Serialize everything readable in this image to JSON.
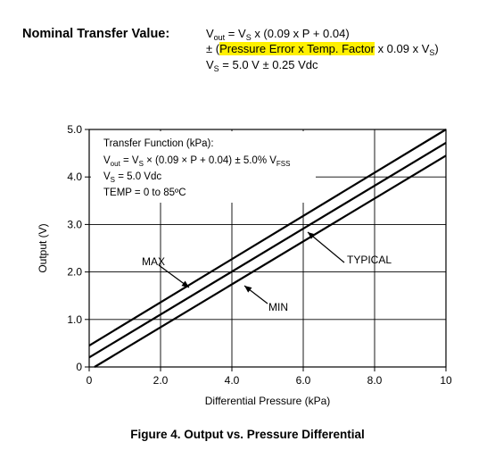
{
  "header": {
    "label": "Nominal Transfer Value:",
    "eq1": {
      "a": "V",
      "a_sub": "out",
      "b": " = V",
      "b_sub": "S",
      "c": " x (0.09 x P + 0.04)"
    },
    "eq2": {
      "pre": "± (",
      "highlight": "Pressure Error x Temp. Factor",
      "post": " x 0.09 x V",
      "post_sub": "S",
      "end": ")"
    },
    "eq3": {
      "a": "V",
      "a_sub": "S",
      "b": " = 5.0 V ± 0.25 Vdc"
    }
  },
  "chart_data": {
    "type": "line",
    "xlabel": "Differential Pressure (kPa)",
    "ylabel": "Output (V)",
    "xlim": [
      0,
      10
    ],
    "ylim": [
      0,
      5.0
    ],
    "x_ticks": [
      "0",
      "2.0",
      "4.0",
      "6.0",
      "8.0",
      "10"
    ],
    "y_ticks": [
      "0",
      "1.0",
      "2.0",
      "3.0",
      "4.0",
      "5.0"
    ],
    "grid": true,
    "series": [
      {
        "name": "MAX",
        "x": [
          0,
          10
        ],
        "y": [
          0.45,
          5.0
        ]
      },
      {
        "name": "TYPICAL",
        "x": [
          0,
          10
        ],
        "y": [
          0.2,
          4.72
        ]
      },
      {
        "name": "MIN",
        "x": [
          0.15,
          10
        ],
        "y": [
          0,
          4.45
        ]
      }
    ],
    "annotation": {
      "line1": "Transfer Function (kPa):",
      "line2_a": "V",
      "line2_a_sub": "out",
      "line2_b": " = V",
      "line2_b_sub": "S",
      "line2_c": " × (0.09 × P + 0.04) ± 5.0% V",
      "line2_c_sub": "FSS",
      "line3_a": "V",
      "line3_a_sub": "S",
      "line3_b": " = 5.0 Vdc",
      "line4": "TEMP = 0 to 85ºC"
    },
    "labels": {
      "max": "MAX",
      "typical": "TYPICAL",
      "min": "MIN"
    }
  },
  "caption": "Figure 4. Output vs. Pressure Differential"
}
